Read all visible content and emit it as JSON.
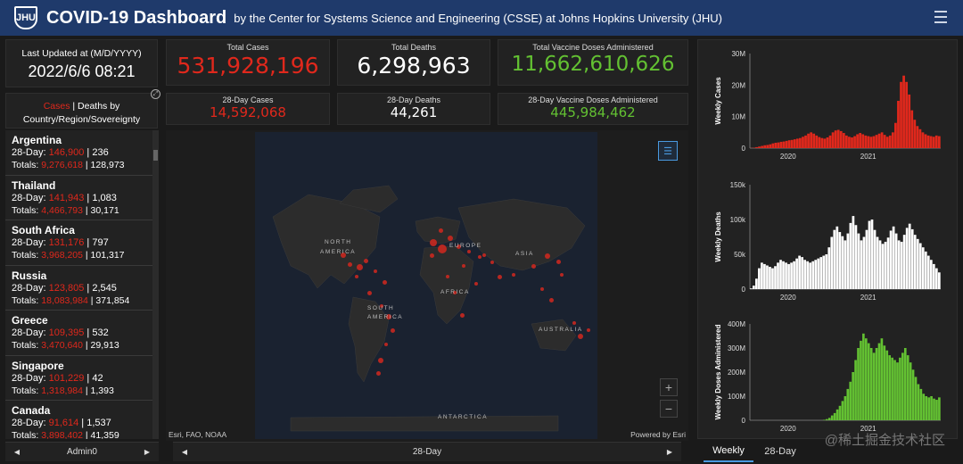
{
  "header": {
    "logo_text": "JHU",
    "title": "COVID-19 Dashboard",
    "subtitle": "by the Center for Systems Science and Engineering (CSSE) at Johns Hopkins University (JHU)"
  },
  "last_updated": {
    "label": "Last Updated at (M/D/YYYY)",
    "value": "2022/6/6 08:21"
  },
  "totals": {
    "cases": {
      "label": "Total Cases",
      "value": "531,928,196"
    },
    "deaths": {
      "label": "Total Deaths",
      "value": "6,298,963"
    },
    "vaccines": {
      "label": "Total Vaccine Doses Administered",
      "value": "11,662,610,626"
    }
  },
  "day28": {
    "cases": {
      "label": "28-Day Cases",
      "value": "14,592,068"
    },
    "deaths": {
      "label": "28-Day Deaths",
      "value": "44,261"
    },
    "vaccines": {
      "label": "28-Day Vaccine Doses Administered",
      "value": "445,984,462"
    }
  },
  "list_header": {
    "cases": "Cases",
    "sep": " | Deaths by",
    "line2": "Country/Region/Sovereignty"
  },
  "countries": [
    {
      "name": "Argentina",
      "d28_cases": "146,900",
      "d28_deaths": "236",
      "tot_cases": "9,276,618",
      "tot_deaths": "128,973"
    },
    {
      "name": "Thailand",
      "d28_cases": "141,943",
      "d28_deaths": "1,083",
      "tot_cases": "4,466,793",
      "tot_deaths": "30,171"
    },
    {
      "name": "South Africa",
      "d28_cases": "131,176",
      "d28_deaths": "797",
      "tot_cases": "3,968,205",
      "tot_deaths": "101,317"
    },
    {
      "name": "Russia",
      "d28_cases": "123,805",
      "d28_deaths": "2,545",
      "tot_cases": "18,083,984",
      "tot_deaths": "371,854"
    },
    {
      "name": "Greece",
      "d28_cases": "109,395",
      "d28_deaths": "532",
      "tot_cases": "3,470,640",
      "tot_deaths": "29,913"
    },
    {
      "name": "Singapore",
      "d28_cases": "101,229",
      "d28_deaths": "42",
      "tot_cases": "1,318,984",
      "tot_deaths": "1,393"
    },
    {
      "name": "Canada",
      "d28_cases": "91,614",
      "d28_deaths": "1,537",
      "tot_cases": "3,898,402",
      "tot_deaths": "41,359"
    }
  ],
  "list_labels": {
    "d28": "28-Day: ",
    "totals": "Totals: ",
    "bar": " | "
  },
  "left_nav": {
    "label": "Admin0"
  },
  "map_nav": {
    "label": "28-Day"
  },
  "map": {
    "labels": [
      "NORTH",
      "AMERICA",
      "EUROPE",
      "ASIA",
      "AFRICA",
      "SOUTH",
      "AMERICA",
      "AUSTRALIA",
      "ANTARCTICA"
    ],
    "attribution_left": "Esri, FAO, NOAA",
    "attribution_right": "Powered by Esri",
    "zoom_in": "+",
    "zoom_out": "−"
  },
  "tabs": {
    "weekly": "Weekly",
    "day28": "28-Day"
  },
  "watermark": "@稀土掘金技术社区",
  "colors": {
    "cases": "#e0281c",
    "deaths": "#ffffff",
    "vaccines": "#63c132",
    "header": "#1f3a6b"
  },
  "chart_data": [
    {
      "type": "area",
      "ylabel": "Weekly Cases",
      "yticks": [
        "0",
        "10M",
        "20M",
        "30M"
      ],
      "ylim": [
        0,
        30000000
      ],
      "xticks": [
        "2020",
        "2021"
      ],
      "color": "#e0281c",
      "values": [
        0.05,
        0.1,
        0.3,
        0.5,
        0.7,
        0.9,
        1.0,
        1.2,
        1.5,
        1.7,
        1.8,
        2.0,
        2.1,
        2.3,
        2.5,
        2.6,
        2.8,
        3.0,
        3.2,
        3.6,
        4.0,
        4.6,
        5.0,
        4.6,
        4.0,
        3.5,
        3.2,
        3.0,
        3.4,
        4.0,
        5.0,
        5.6,
        5.8,
        5.4,
        4.8,
        4.0,
        3.6,
        3.4,
        3.8,
        4.4,
        4.8,
        4.4,
        4.0,
        3.8,
        3.6,
        3.8,
        4.2,
        4.6,
        5.0,
        4.2,
        3.6,
        4.0,
        5.0,
        8.0,
        15.0,
        21.0,
        23.0,
        21.0,
        17.0,
        12.0,
        9.0,
        7.0,
        6.0,
        5.0,
        4.4,
        4.0,
        3.8,
        3.6,
        4.0,
        3.8
      ]
    },
    {
      "type": "area",
      "ylabel": "Weekly Deaths",
      "yticks": [
        "0",
        "50k",
        "100k",
        "150k"
      ],
      "ylim": [
        0,
        150000
      ],
      "xticks": [
        "2020",
        "2021"
      ],
      "color": "#ffffff",
      "values": [
        1,
        5,
        15,
        30,
        38,
        36,
        34,
        32,
        30,
        33,
        38,
        42,
        40,
        38,
        36,
        38,
        40,
        44,
        48,
        46,
        42,
        40,
        38,
        40,
        42,
        44,
        46,
        48,
        50,
        60,
        75,
        85,
        90,
        82,
        76,
        70,
        80,
        95,
        105,
        92,
        80,
        70,
        75,
        85,
        98,
        100,
        85,
        75,
        70,
        65,
        68,
        74,
        84,
        90,
        80,
        70,
        68,
        78,
        88,
        94,
        86,
        78,
        72,
        66,
        60,
        54,
        48,
        42,
        36,
        30,
        24
      ]
    },
    {
      "type": "bar",
      "ylabel": "Weekly Doses Administered",
      "yticks": [
        "0",
        "100M",
        "200M",
        "300M",
        "400M"
      ],
      "ylim": [
        0,
        400000000
      ],
      "xticks": [
        "2020",
        "2021"
      ],
      "color": "#63c132",
      "values": [
        0,
        0,
        0,
        0,
        0,
        0,
        0,
        0,
        0,
        0,
        0,
        0,
        0,
        0,
        0,
        0,
        0,
        0,
        0,
        0,
        0,
        0,
        0,
        0,
        0,
        0,
        0,
        0,
        2,
        5,
        10,
        20,
        30,
        45,
        60,
        80,
        100,
        130,
        160,
        200,
        250,
        300,
        330,
        360,
        340,
        320,
        300,
        280,
        300,
        320,
        340,
        310,
        290,
        270,
        260,
        250,
        240,
        260,
        280,
        300,
        270,
        240,
        210,
        180,
        150,
        130,
        110,
        100,
        95,
        100,
        90,
        85,
        95
      ]
    }
  ]
}
